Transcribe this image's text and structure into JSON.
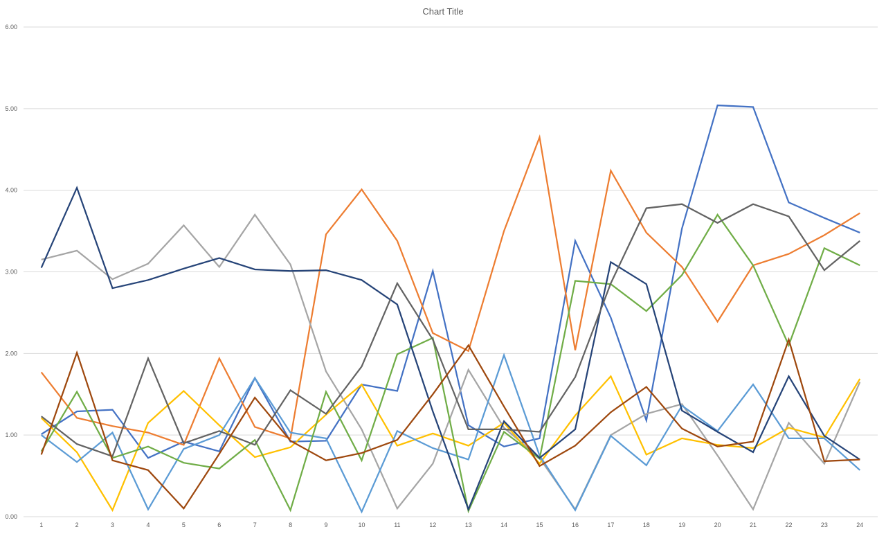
{
  "chart_data": {
    "type": "line",
    "title": "Chart Title",
    "xlabel": "",
    "ylabel": "",
    "ylim": [
      0,
      6
    ],
    "y_ticks": [
      "0.00",
      "1.00",
      "2.00",
      "3.00",
      "4.00",
      "5.00",
      "6.00"
    ],
    "categories": [
      "1",
      "2",
      "3",
      "4",
      "5",
      "6",
      "7",
      "8",
      "9",
      "10",
      "11",
      "12",
      "13",
      "14",
      "15",
      "16",
      "17",
      "18",
      "19",
      "20",
      "21",
      "22",
      "23",
      "24"
    ],
    "grid": true,
    "legend": "none",
    "series": [
      {
        "color": "#4472c4",
        "values": [
          1.01,
          1.29,
          1.31,
          0.72,
          0.92,
          0.8,
          1.7,
          0.92,
          0.93,
          1.62,
          1.54,
          3.01,
          1.12,
          0.86,
          0.96,
          3.38,
          2.44,
          1.18,
          3.53,
          5.04,
          5.02,
          3.85,
          3.66,
          3.48
        ]
      },
      {
        "color": "#ed7d31",
        "values": [
          1.77,
          1.21,
          1.11,
          1.03,
          0.88,
          1.94,
          1.1,
          0.96,
          3.46,
          4.01,
          3.38,
          2.25,
          2.03,
          3.5,
          4.65,
          2.04,
          4.24,
          3.48,
          3.06,
          2.39,
          3.08,
          3.22,
          3.45,
          3.72
        ]
      },
      {
        "color": "#a5a5a5",
        "values": [
          3.15,
          3.26,
          2.91,
          3.1,
          3.57,
          3.06,
          3.7,
          3.09,
          1.78,
          1.07,
          0.1,
          0.65,
          1.8,
          1.09,
          0.72,
          0.09,
          1.0,
          1.26,
          1.38,
          0.75,
          0.09,
          1.15,
          0.65,
          1.65
        ]
      },
      {
        "color": "#ffc000",
        "values": [
          1.21,
          0.79,
          0.08,
          1.15,
          1.54,
          1.12,
          0.73,
          0.85,
          1.25,
          1.62,
          0.87,
          1.02,
          0.87,
          1.15,
          0.65,
          1.24,
          1.72,
          0.76,
          0.96,
          0.88,
          0.84,
          1.09,
          0.97,
          1.69
        ]
      },
      {
        "color": "#5b9bd5",
        "values": [
          1.0,
          0.67,
          1.03,
          0.09,
          0.83,
          1.0,
          1.7,
          1.03,
          0.96,
          0.06,
          1.05,
          0.84,
          0.7,
          1.98,
          0.75,
          0.08,
          0.99,
          0.63,
          1.36,
          1.05,
          1.62,
          0.96,
          0.96,
          0.57
        ]
      },
      {
        "color": "#70ad47",
        "values": [
          0.8,
          1.53,
          0.72,
          0.86,
          0.66,
          0.59,
          0.94,
          0.08,
          1.53,
          0.69,
          1.99,
          2.19,
          0.07,
          1.04,
          0.71,
          2.89,
          2.85,
          2.52,
          2.96,
          3.7,
          3.08,
          2.1,
          3.29,
          3.08
        ]
      },
      {
        "color": "#264478",
        "values": [
          3.05,
          4.03,
          2.8,
          2.9,
          3.04,
          3.17,
          3.03,
          3.01,
          3.02,
          2.9,
          2.6,
          1.29,
          0.09,
          1.17,
          0.72,
          1.07,
          3.12,
          2.85,
          1.3,
          1.04,
          0.79,
          1.72,
          0.99,
          0.7
        ]
      },
      {
        "color": "#636363",
        "values": [
          1.23,
          0.89,
          0.74,
          1.94,
          0.9,
          1.05,
          0.88,
          1.55,
          1.26,
          1.84,
          2.86,
          2.17,
          1.07,
          1.07,
          1.04,
          1.71,
          2.86,
          3.78,
          3.83,
          3.6,
          3.83,
          3.68,
          3.02,
          3.38
        ]
      },
      {
        "color": "#9e480e",
        "values": [
          0.76,
          2.01,
          0.69,
          0.57,
          0.1,
          0.77,
          1.46,
          0.93,
          0.69,
          0.78,
          0.94,
          1.5,
          2.1,
          1.35,
          0.62,
          0.87,
          1.28,
          1.59,
          1.08,
          0.86,
          0.92,
          2.17,
          0.68,
          0.7
        ]
      }
    ]
  }
}
